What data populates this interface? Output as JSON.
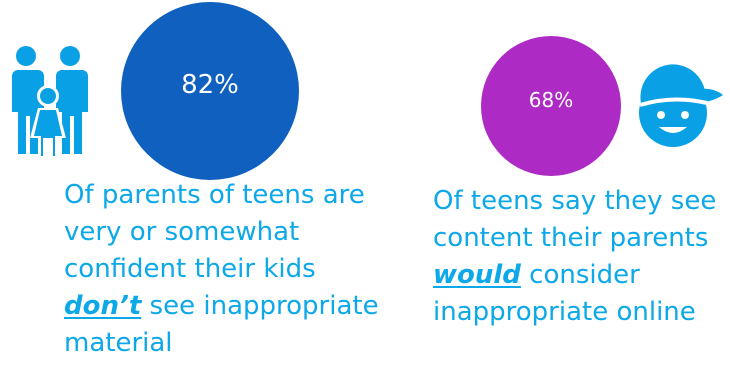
{
  "left_stat": {
    "percent": "82%",
    "circle_color": "#1060bf",
    "icon": "family-icon",
    "caption": {
      "line1": "Of parents of teens are",
      "line2": "very or somewhat",
      "line3": "confident their kids",
      "line4_emphasis": "don’t",
      "line4_rest": " see inappropriate",
      "line5": "material"
    }
  },
  "right_stat": {
    "percent": "68%",
    "circle_color": "#ae2ac4",
    "icon": "kid-face-icon",
    "caption": {
      "line1": "Of teens say they see",
      "line2": "content their parents",
      "line3_emphasis": "would",
      "line3_rest": " consider",
      "line4": "inappropriate online"
    }
  },
  "colors": {
    "caption_text": "#0ca8e8",
    "icon_blue": "#0aa0e6"
  }
}
